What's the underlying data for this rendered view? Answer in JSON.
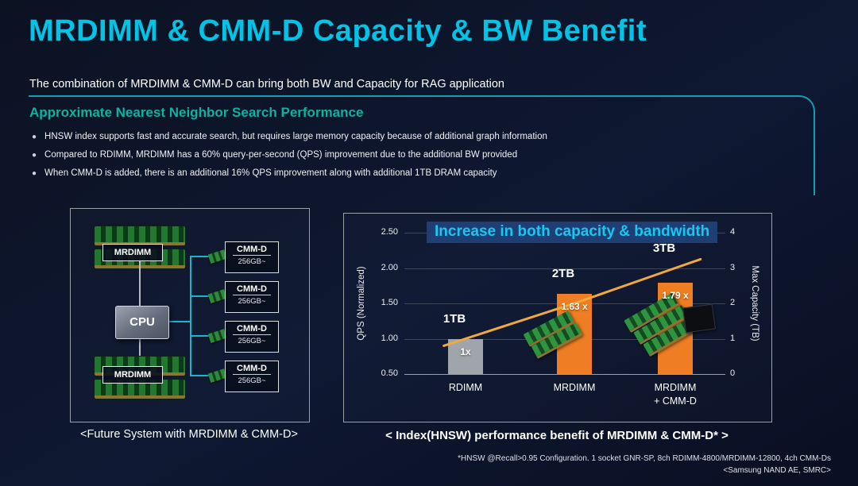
{
  "slide": {
    "title": "MRDIMM & CMM-D Capacity & BW Benefit",
    "subtitle": "The combination of MRDIMM & CMM-D can bring both BW and Capacity for RAG application",
    "section_header": "Approximate Nearest Neighbor Search Performance",
    "bullets": [
      "HNSW index supports fast and accurate search, but requires large memory capacity because of additional graph information",
      "Compared to RDIMM, MRDIMM has a 60% query-per-second (QPS) improvement due to the additional BW provided",
      "When CMM-D is added, there is an additional 16% QPS improvement along with additional 1TB DRAM capacity"
    ],
    "footnote": {
      "line1": "*HNSW @Recall>0.95 Configuration. 1 socket GNR-SP, 8ch RDIMM-4800/MRDIMM-12800, 4ch CMM-Ds",
      "line2": "<Samsung NAND AE, SMRC>"
    }
  },
  "diagram": {
    "caption": "<Future System with MRDIMM & CMM-D>",
    "cpu": "CPU",
    "mrdimm_top": "MRDIMM",
    "mrdimm_bottom": "MRDIMM",
    "cmmd": [
      {
        "name": "CMM-D",
        "capacity": "256GB~"
      },
      {
        "name": "CMM-D",
        "capacity": "256GB~"
      },
      {
        "name": "CMM-D",
        "capacity": "256GB~"
      },
      {
        "name": "CMM-D",
        "capacity": "256GB~"
      }
    ]
  },
  "chart": {
    "title": "Increase in both capacity & bandwidth",
    "caption": "< Index(HNSW) performance benefit of MRDIMM & CMM-D* >"
  },
  "chart_data": {
    "type": "bar",
    "title": "Increase in both capacity & bandwidth",
    "categories": [
      "RDIMM",
      "MRDIMM",
      "MRDIMM + CMM-D"
    ],
    "category_display": [
      [
        "RDIMM"
      ],
      [
        "MRDIMM"
      ],
      [
        "MRDIMM",
        "+ CMM-D"
      ]
    ],
    "series": [
      {
        "name": "QPS (Normalized)",
        "type": "bar",
        "axis": "left",
        "values": [
          1.0,
          1.63,
          1.79
        ],
        "bar_labels": [
          "1x",
          "1.63 x",
          "1.79 x"
        ],
        "bar_colors": [
          "#a0a4ab",
          "#ee7d23",
          "#ee7d23"
        ]
      },
      {
        "name": "Max Capacity (TB)",
        "type": "line",
        "axis": "right",
        "values": [
          1,
          2,
          3
        ],
        "point_labels": [
          "1TB",
          "2TB",
          "3TB"
        ],
        "color": "#f2a93b"
      }
    ],
    "left_axis": {
      "label": "QPS (Normalized)",
      "min": 0.5,
      "max": 2.5,
      "tick_labels": [
        "2.50",
        "2.00",
        "1.50",
        "1.00",
        "0.50"
      ]
    },
    "right_axis": {
      "label": "Max Capacity (TB)",
      "min": 0,
      "max": 4,
      "tick_labels": [
        "4",
        "3",
        "2",
        "1",
        "0"
      ]
    },
    "grid": true,
    "legend": "none"
  },
  "colors": {
    "accent_cyan": "#00c3e6",
    "accent_teal": "#0f9fb0",
    "bar_gray": "#a0a4ab",
    "bar_orange": "#ee7d23",
    "line_yellow": "#f2a93b",
    "highlight_blue": "#1f3e74"
  }
}
